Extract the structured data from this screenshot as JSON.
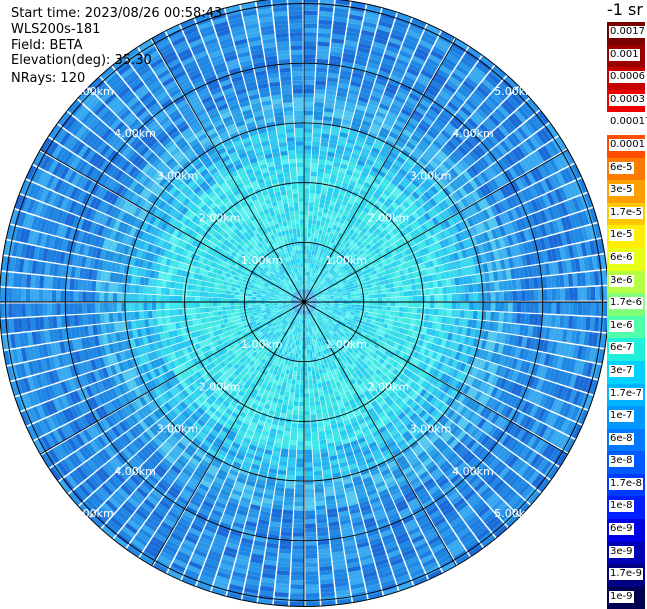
{
  "header": {
    "start_time": "Start time: 2023/08/26 00:58:43",
    "instrument": "WLS200s-181",
    "field": "Field: BETA",
    "elevation": "Elevation(deg): 35.30",
    "nrays": "NRays: 120"
  },
  "legend": {
    "unit": "-1 sr",
    "colors": [
      "#7a0000",
      "#b80000",
      "#e00000",
      "#ff1a00",
      "#ffffff",
      "#ff5a00",
      "#ff8200",
      "#ffaa00",
      "#ffd200",
      "#ffff00",
      "#d2ff2a",
      "#a0ff58",
      "#6dff8a",
      "#39ffbd",
      "#00f0f0",
      "#00c8ff",
      "#00a0ff",
      "#0078ff",
      "#0050ff",
      "#0028ff",
      "#0000ff",
      "#0000c8",
      "#000096",
      "#000064"
    ],
    "labels": [
      "0.0017",
      "0.001",
      "0.0006",
      "0.0003",
      "0.00017",
      "0.0001",
      "6e-5",
      "3e-5",
      "1.7e-5",
      "1e-5",
      "6e-6",
      "3e-6",
      "1.7e-6",
      "1e-6",
      "6e-7",
      "3e-7",
      "1.7e-7",
      "1e-7",
      "6e-8",
      "3e-8",
      "1.7e-8",
      "1e-8",
      "6e-9",
      "3e-9",
      "1.7e-9",
      "1e-9"
    ]
  },
  "chart_data": {
    "type": "heatmap",
    "projection": "polar PPI",
    "field": "BETA",
    "elevation_deg": 35.3,
    "n_rays": 120,
    "range_rings_km": [
      1,
      2,
      3,
      4,
      5
    ],
    "max_range_km": 5.1,
    "ring_labels": [
      "1.00km",
      "2.00km",
      "3.00km",
      "4.00km",
      "5.00km"
    ],
    "spokes_deg": [
      0,
      30,
      60,
      90,
      120,
      150,
      180,
      210,
      240,
      270,
      300,
      330
    ],
    "color_scale": "log",
    "value_range": [
      1e-09,
      0.0017
    ],
    "radial_profile": {
      "range_km": [
        0.2,
        0.6,
        1.0,
        1.5,
        2.0,
        2.5,
        3.0,
        3.5,
        4.0,
        4.5,
        5.0
      ],
      "typical_level": [
        "6e-8",
        "1.7e-7",
        "1.7e-7",
        "3e-7",
        "3e-7",
        "1.7e-7",
        "1e-7",
        "6e-8",
        "3e-8",
        "3e-8",
        "3e-8"
      ]
    }
  }
}
